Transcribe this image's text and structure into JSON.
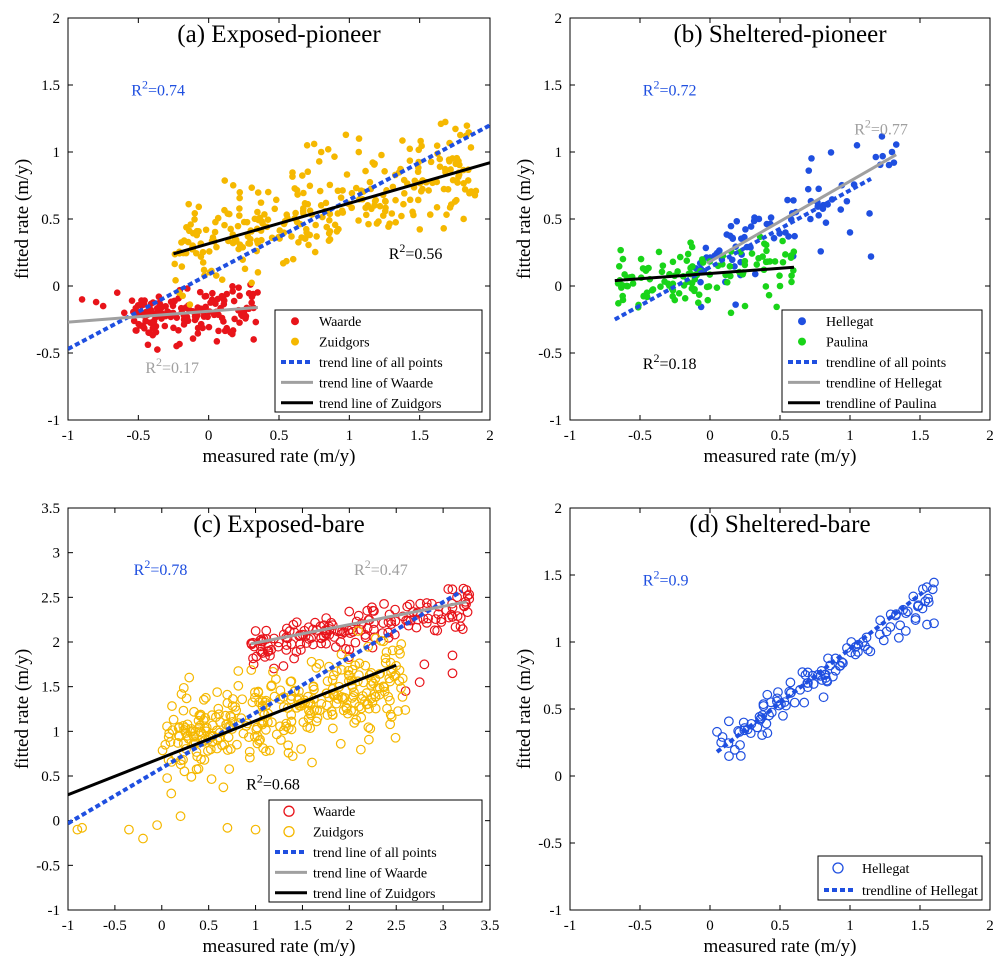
{
  "colors": {
    "red": "#e8141a",
    "orange": "#f5b800",
    "blue": "#1f4fe0",
    "green": "#19d419",
    "gray": "#a0a0a0",
    "black": "#000000",
    "annotation_blue": "#1f4fe0"
  },
  "chart_data": [
    {
      "id": "a",
      "type": "scatter",
      "title": "(a) Exposed-pioneer",
      "xlabel": "measured rate (m/y)",
      "ylabel": "fitted rate (m/y)",
      "xlim": [
        -1,
        2
      ],
      "ylim": [
        -1,
        2
      ],
      "xticks": [
        -1,
        -0.5,
        0,
        0.5,
        1,
        1.5,
        2
      ],
      "yticks": [
        -1,
        -0.5,
        0,
        0.5,
        1,
        1.5,
        2
      ],
      "legend_location": "lower-right",
      "series": [
        {
          "name": "Waarde",
          "kind": "points",
          "marker": "filled",
          "color": "red",
          "cluster": {
            "n": 160,
            "x": [
              -0.55,
              0.35
            ],
            "slope": 0.12,
            "intercept": -0.2,
            "spread": 0.1
          },
          "extra_points": [
            [
              -0.9,
              -0.1
            ],
            [
              -0.75,
              -0.15
            ],
            [
              -0.6,
              -0.2
            ],
            [
              -0.8,
              -0.12
            ],
            [
              -0.65,
              -0.05
            ]
          ]
        },
        {
          "name": "Zuidgors",
          "kind": "points",
          "marker": "filled",
          "color": "orange",
          "cluster": {
            "n": 300,
            "x": [
              -0.25,
              1.9
            ],
            "slope": 0.3,
            "intercept": 0.33,
            "spread": 0.17
          },
          "extra_points": [
            [
              0.75,
              1.06
            ],
            [
              0.7,
              1.05
            ],
            [
              0.8,
              1.0
            ],
            [
              0.85,
              1.02
            ]
          ]
        },
        {
          "name": "trend line of all points",
          "kind": "line",
          "style": "dotted",
          "color": "blue",
          "points": [
            [
              -1,
              -0.47
            ],
            [
              2,
              1.2
            ]
          ]
        },
        {
          "name": "trend line of Waarde",
          "kind": "line",
          "style": "solid",
          "color": "gray",
          "points": [
            [
              -1,
              -0.27
            ],
            [
              0.35,
              -0.16
            ]
          ]
        },
        {
          "name": "trend line of Zuidgors",
          "kind": "line",
          "style": "solid",
          "color": "black",
          "points": [
            [
              -0.25,
              0.24
            ],
            [
              2,
              0.92
            ]
          ]
        }
      ],
      "annotations": [
        {
          "text": "R²=0.74",
          "color": "annotation_blue",
          "x": -0.55,
          "y": 1.42
        },
        {
          "text": "R²=0.56",
          "color": "black",
          "x": 1.28,
          "y": 0.2
        },
        {
          "text": "R²=0.17",
          "color": "gray",
          "x": -0.45,
          "y": -0.65
        }
      ]
    },
    {
      "id": "b",
      "type": "scatter",
      "title": "(b) Sheltered-pioneer",
      "xlabel": "measured rate (m/y)",
      "ylabel": "fitted rate (m/y)",
      "xlim": [
        -1,
        2
      ],
      "ylim": [
        -1,
        2
      ],
      "xticks": [
        -1,
        -0.5,
        0,
        0.5,
        1,
        1.5,
        2
      ],
      "yticks": [
        -1,
        -0.5,
        0,
        0.5,
        1,
        1.5,
        2
      ],
      "legend_location": "lower-right",
      "series": [
        {
          "name": "Hellegat",
          "kind": "points",
          "marker": "filled",
          "color": "blue",
          "cluster": {
            "n": 80,
            "x": [
              -0.1,
              1.35
            ],
            "slope": 0.55,
            "intercept": 0.22,
            "spread": 0.15
          },
          "extra_points": [
            [
              1.15,
              0.22
            ],
            [
              1.0,
              0.4
            ],
            [
              1.05,
              1.05
            ],
            [
              1.3,
              1.0
            ]
          ]
        },
        {
          "name": "Paulina",
          "kind": "points",
          "marker": "filled",
          "color": "green",
          "cluster": {
            "n": 120,
            "x": [
              -0.7,
              0.6
            ],
            "slope": 0.1,
            "intercept": 0.1,
            "spread": 0.1
          },
          "extra_points": [
            [
              0.15,
              -0.2
            ],
            [
              0.25,
              -0.15
            ],
            [
              0.5,
              0.0
            ],
            [
              -0.45,
              -0.05
            ]
          ]
        },
        {
          "name": "trendline of all points",
          "kind": "line",
          "style": "dotted",
          "color": "blue",
          "points": [
            [
              -0.68,
              -0.25
            ],
            [
              1.15,
              0.8
            ]
          ]
        },
        {
          "name": "trendline of Hellegat",
          "kind": "line",
          "style": "solid",
          "color": "gray",
          "points": [
            [
              -0.02,
              0.17
            ],
            [
              1.33,
              0.98
            ]
          ]
        },
        {
          "name": "trendline of Paulina",
          "kind": "line",
          "style": "solid",
          "color": "black",
          "points": [
            [
              -0.68,
              0.04
            ],
            [
              0.6,
              0.14
            ]
          ]
        }
      ],
      "annotations": [
        {
          "text": "R²=0.72",
          "color": "annotation_blue",
          "x": -0.48,
          "y": 1.42
        },
        {
          "text": "R²=0.77",
          "color": "gray",
          "x": 1.03,
          "y": 1.13
        },
        {
          "text": "R²=0.18",
          "color": "black",
          "x": -0.48,
          "y": -0.62
        }
      ]
    },
    {
      "id": "c",
      "type": "scatter",
      "title": "(c) Exposed-bare",
      "xlabel": "measured rate (m/y)",
      "ylabel": "fitted rate (m/y)",
      "xlim": [
        -1,
        3.5
      ],
      "ylim": [
        -1,
        3.5
      ],
      "xticks": [
        -1,
        -0.5,
        0,
        0.5,
        1,
        1.5,
        2,
        2.5,
        3,
        3.5
      ],
      "yticks": [
        -1,
        -0.5,
        0,
        0.5,
        1,
        1.5,
        2,
        2.5,
        3,
        3.5
      ],
      "legend_location": "lower-right",
      "series": [
        {
          "name": "Waarde",
          "kind": "points",
          "marker": "open",
          "color": "red",
          "cluster": {
            "n": 170,
            "x": [
              0.95,
              3.3
            ],
            "slope": 0.2,
            "intercept": 1.75,
            "spread": 0.12
          },
          "extra_points": [
            [
              2.6,
              1.45
            ],
            [
              2.8,
              1.75
            ],
            [
              3.1,
              1.65
            ],
            [
              3.1,
              1.85
            ],
            [
              2.75,
              1.55
            ]
          ]
        },
        {
          "name": "Zuidgors",
          "kind": "points",
          "marker": "open",
          "color": "orange",
          "cluster": {
            "n": 350,
            "x": [
              0.0,
              2.6
            ],
            "slope": 0.3,
            "intercept": 0.85,
            "spread": 0.25
          },
          "extra_points": [
            [
              -0.85,
              -0.08
            ],
            [
              -0.9,
              -0.1
            ],
            [
              -0.35,
              -0.1
            ],
            [
              -0.2,
              -0.2
            ],
            [
              -0.05,
              -0.05
            ],
            [
              0.2,
              0.05
            ],
            [
              0.7,
              -0.08
            ],
            [
              1.0,
              -0.1
            ]
          ]
        },
        {
          "name": "trend line of all points",
          "kind": "line",
          "style": "dotted",
          "color": "blue",
          "points": [
            [
              -1,
              -0.03
            ],
            [
              3.2,
              2.57
            ]
          ]
        },
        {
          "name": "trend line of Waarde",
          "kind": "line",
          "style": "solid",
          "color": "gray",
          "points": [
            [
              0.95,
              1.98
            ],
            [
              3.25,
              2.45
            ]
          ]
        },
        {
          "name": "trend line of Zuidgors",
          "kind": "line",
          "style": "solid",
          "color": "black",
          "points": [
            [
              -1,
              0.29
            ],
            [
              2.5,
              1.74
            ]
          ]
        }
      ],
      "annotations": [
        {
          "text": "R²=0.78",
          "color": "annotation_blue",
          "x": -0.3,
          "y": 2.75
        },
        {
          "text": "R²=0.47",
          "color": "gray",
          "x": 2.05,
          "y": 2.75
        },
        {
          "text": "R²=0.68",
          "color": "black",
          "x": 0.9,
          "y": 0.35
        }
      ]
    },
    {
      "id": "d",
      "type": "scatter",
      "title": "(d) Sheltered-bare",
      "xlabel": "measured rate (m/y)",
      "ylabel": "fitted rate (m/y)",
      "xlim": [
        -1,
        2
      ],
      "ylim": [
        -1,
        2
      ],
      "xticks": [
        -1,
        -0.5,
        0,
        0.5,
        1,
        1.5,
        2
      ],
      "yticks": [
        -1,
        -0.5,
        0,
        0.5,
        1,
        1.5,
        2
      ],
      "legend_location": "lower-right",
      "series": [
        {
          "name": "Hellegat",
          "kind": "points",
          "marker": "open",
          "color": "blue",
          "cluster": {
            "n": 110,
            "x": [
              0.05,
              1.6
            ],
            "slope": 0.75,
            "intercept": 0.15,
            "spread": 0.07
          },
          "extra_points": [
            [
              0.05,
              0.33
            ],
            [
              0.08,
              0.25
            ],
            [
              0.22,
              0.15
            ],
            [
              1.55,
              1.13
            ],
            [
              1.6,
              1.14
            ]
          ]
        },
        {
          "name": "trendline of Hellegat",
          "kind": "line",
          "style": "dotted",
          "color": "blue",
          "points": [
            [
              0.05,
              0.18
            ],
            [
              1.52,
              1.37
            ]
          ]
        }
      ],
      "annotations": [
        {
          "text": "R²=0.9",
          "color": "annotation_blue",
          "x": -0.48,
          "y": 1.42
        }
      ]
    }
  ]
}
